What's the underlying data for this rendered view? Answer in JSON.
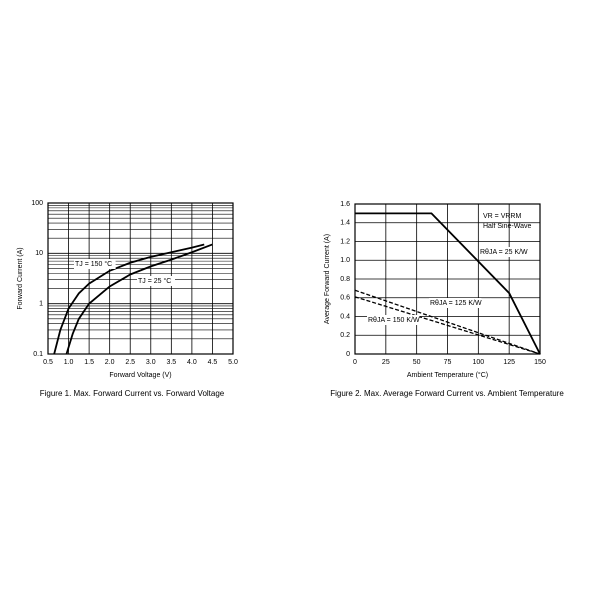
{
  "chart_data": [
    {
      "type": "line",
      "caption": "Figure 1. Max. Forward Current vs. Forward Voltage",
      "x_label": "Forward Voltage (V)",
      "y_label": "Forward Current (A)",
      "xlim": [
        0.5,
        5.0
      ],
      "xticks": [
        0.5,
        {
          "value": 1,
          "label": "1.0"
        },
        1.5,
        {
          "value": 2,
          "label": "2.0"
        },
        2.5,
        {
          "value": 3,
          "label": "3.0"
        },
        3.5,
        {
          "value": 4,
          "label": "4.0"
        },
        4.5,
        {
          "value": 5,
          "label": "5.0"
        }
      ],
      "ylim": [
        0.1,
        100
      ],
      "yticks": [
        0.1,
        1,
        10,
        100
      ],
      "log_y": true,
      "grid": true,
      "series": [
        {
          "name": "TJ = 150 °C",
          "color": "#000000",
          "style": "solid",
          "x": [
            0.65,
            0.8,
            1.0,
            1.25,
            1.5,
            2.0,
            2.5,
            3.0,
            3.5,
            4.0,
            4.3
          ],
          "values": [
            0.1,
            0.3,
            0.8,
            1.6,
            2.5,
            4.5,
            6.5,
            8.5,
            10.5,
            13,
            15
          ]
        },
        {
          "name": "TJ = 25 °C",
          "color": "#000000",
          "style": "solid",
          "x": [
            0.95,
            1.1,
            1.25,
            1.5,
            2.0,
            2.5,
            3.0,
            3.5,
            4.0,
            4.5
          ],
          "values": [
            0.1,
            0.25,
            0.5,
            1.0,
            2.2,
            3.8,
            5.5,
            7.5,
            10.5,
            15
          ]
        }
      ]
    },
    {
      "type": "line",
      "caption": "Figure 2. Max. Average Forward Current vs. Ambient Temperature",
      "x_label": "Ambient Temperature (°C)",
      "y_label": "Average Forward Current (A)",
      "xlim": [
        0,
        150
      ],
      "xticks": [
        0,
        25,
        50,
        75,
        100,
        125,
        150
      ],
      "ylim": [
        0,
        1.6
      ],
      "yticks": [
        0,
        0.2,
        0.4,
        0.6,
        0.8,
        {
          "value": 1,
          "label": "1.0"
        },
        1.2,
        1.4,
        1.6
      ],
      "log_y": false,
      "grid": true,
      "annotations": [
        "VR = VRRM",
        "Half Sine-Wave"
      ],
      "series": [
        {
          "name": "RθJA = 25 K/W",
          "color": "#000000",
          "style": "solid",
          "x": [
            0,
            62,
            125,
            150
          ],
          "values": [
            1.5,
            1.5,
            0.65,
            0
          ]
        },
        {
          "name": "RθJA = 125 K/W",
          "color": "#000000",
          "style": "dashed",
          "x": [
            0,
            150
          ],
          "values": [
            0.68,
            0
          ]
        },
        {
          "name": "RθJA = 150 K/W",
          "color": "#000000",
          "style": "dashed",
          "x": [
            0,
            150
          ],
          "values": [
            0.61,
            0
          ]
        }
      ]
    }
  ]
}
